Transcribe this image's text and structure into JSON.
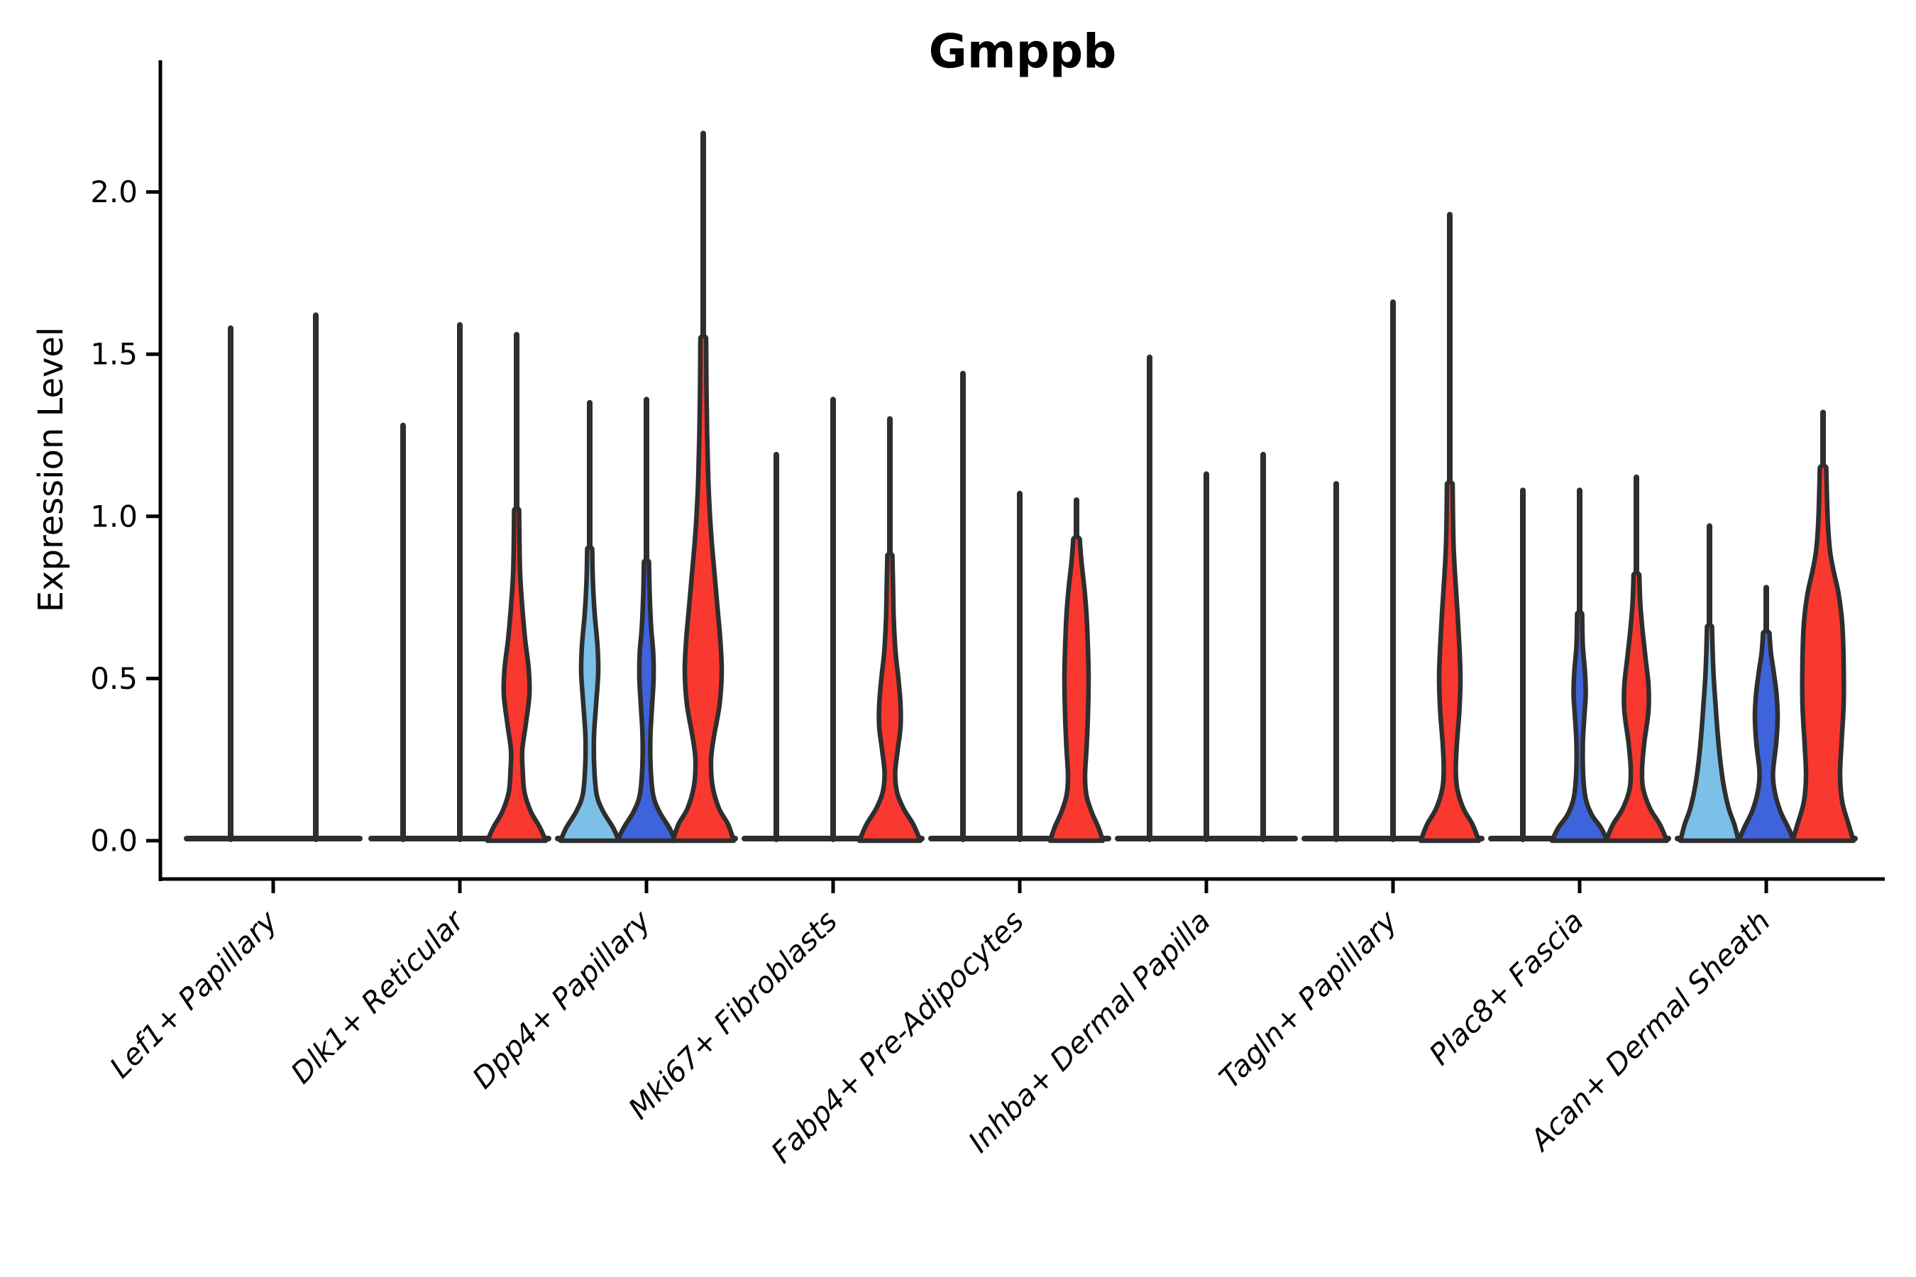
{
  "chart_data": {
    "type": "violin",
    "title": "Gmppb",
    "ylabel": "Expression Level",
    "xlabel": "",
    "yticks": [
      "0.0",
      "0.5",
      "1.0",
      "1.5",
      "2.0"
    ],
    "ytick_values": [
      0.0,
      0.5,
      1.0,
      1.5,
      2.0
    ],
    "ylim": [
      -0.12,
      2.41
    ],
    "grid": "off",
    "legend": "none",
    "palette": {
      "lightblue": "#7CC0E8",
      "blue": "#3E63DA",
      "red": "#F9382F",
      "outline": "#2E2E2E",
      "axis": "#000000"
    },
    "categories": [
      "Lef1+ Papillary",
      "Dlk1+ Reticular",
      "Dpp4+ Papillary",
      "Mki67+ Fibroblasts",
      "Fabp4+ Pre-Adipocytes",
      "Inhba+ Dermal Papilla",
      "Tagln+ Papillary",
      "Plac8+ Fascia",
      "Acan+ Dermal Sheath"
    ],
    "groups": [
      {
        "category": "Lef1+ Papillary",
        "base_half_extend": 62,
        "violins": [
          {
            "color": null,
            "offset": -60,
            "max": 1.58,
            "profile": null
          },
          {
            "color": null,
            "offset": 60,
            "max": 1.62,
            "profile": null
          }
        ]
      },
      {
        "category": "Dlk1+ Reticular",
        "base_half_extend": 45,
        "violins": [
          {
            "color": null,
            "offset": -80,
            "max": 1.28,
            "profile": null
          },
          {
            "color": null,
            "offset": 0,
            "max": 1.59,
            "profile": null
          },
          {
            "color": "red",
            "offset": 80,
            "max": 1.56,
            "profile": [
              [
                0,
                41
              ],
              [
                0.04,
                33
              ],
              [
                0.09,
                20
              ],
              [
                0.15,
                11
              ],
              [
                0.22,
                8.5
              ],
              [
                0.28,
                8
              ],
              [
                0.36,
                13
              ],
              [
                0.45,
                18
              ],
              [
                0.53,
                17
              ],
              [
                0.62,
                12
              ],
              [
                0.72,
                8
              ],
              [
                0.82,
                5
              ],
              [
                0.92,
                4
              ],
              [
                1.02,
                3.5
              ]
            ]
          }
        ]
      },
      {
        "category": "Dpp4+ Papillary",
        "base_half_extend": 45,
        "violins": [
          {
            "color": "lightblue",
            "offset": -80,
            "max": 1.35,
            "profile": [
              [
                0,
                41
              ],
              [
                0.04,
                33
              ],
              [
                0.09,
                19
              ],
              [
                0.14,
                10
              ],
              [
                0.22,
                6.5
              ],
              [
                0.32,
                6
              ],
              [
                0.42,
                9
              ],
              [
                0.52,
                12
              ],
              [
                0.6,
                11
              ],
              [
                0.7,
                7
              ],
              [
                0.8,
                4.5
              ],
              [
                0.9,
                3.5
              ]
            ]
          },
          {
            "color": "blue",
            "offset": 0,
            "max": 1.36,
            "profile": [
              [
                0,
                41
              ],
              [
                0.04,
                32
              ],
              [
                0.09,
                18
              ],
              [
                0.14,
                9.5
              ],
              [
                0.22,
                6
              ],
              [
                0.32,
                5.5
              ],
              [
                0.42,
                8
              ],
              [
                0.5,
                10
              ],
              [
                0.58,
                9.5
              ],
              [
                0.66,
                6.5
              ],
              [
                0.76,
                4.5
              ],
              [
                0.86,
                3.5
              ]
            ]
          },
          {
            "color": "red",
            "offset": 80,
            "max": 2.18,
            "profile": [
              [
                0,
                43
              ],
              [
                0.05,
                35
              ],
              [
                0.1,
                22
              ],
              [
                0.17,
                13
              ],
              [
                0.25,
                11
              ],
              [
                0.32,
                15
              ],
              [
                0.42,
                23
              ],
              [
                0.52,
                26
              ],
              [
                0.62,
                24
              ],
              [
                0.72,
                20
              ],
              [
                0.82,
                16
              ],
              [
                0.92,
                12
              ],
              [
                1.02,
                9
              ],
              [
                1.12,
                7
              ],
              [
                1.25,
                5.5
              ],
              [
                1.4,
                4.5
              ],
              [
                1.55,
                4
              ]
            ]
          }
        ]
      },
      {
        "category": "Mki67+ Fibroblasts",
        "base_half_extend": 45,
        "violins": [
          {
            "color": null,
            "offset": -80,
            "max": 1.19,
            "profile": null
          },
          {
            "color": null,
            "offset": 0,
            "max": 1.36,
            "profile": null
          },
          {
            "color": "red",
            "offset": 80,
            "max": 1.3,
            "profile": [
              [
                0,
                43
              ],
              [
                0.05,
                33
              ],
              [
                0.1,
                19
              ],
              [
                0.15,
                10
              ],
              [
                0.21,
                7.5
              ],
              [
                0.28,
                11
              ],
              [
                0.35,
                15
              ],
              [
                0.42,
                15
              ],
              [
                0.5,
                12
              ],
              [
                0.58,
                8
              ],
              [
                0.68,
                5.5
              ],
              [
                0.78,
                4.5
              ],
              [
                0.88,
                3.5
              ]
            ]
          }
        ]
      },
      {
        "category": "Fabp4+ Pre-Adipocytes",
        "base_half_extend": 45,
        "violins": [
          {
            "color": null,
            "offset": -80,
            "max": 1.44,
            "profile": null
          },
          {
            "color": null,
            "offset": 0,
            "max": 1.07,
            "profile": null
          },
          {
            "color": "red",
            "offset": 80,
            "max": 1.05,
            "profile": [
              [
                0,
                37
              ],
              [
                0.04,
                31
              ],
              [
                0.09,
                21
              ],
              [
                0.14,
                14
              ],
              [
                0.2,
                12
              ],
              [
                0.28,
                14
              ],
              [
                0.38,
                16
              ],
              [
                0.5,
                17
              ],
              [
                0.6,
                16
              ],
              [
                0.7,
                14
              ],
              [
                0.78,
                11
              ],
              [
                0.86,
                7
              ],
              [
                0.93,
                4.5
              ]
            ]
          }
        ]
      },
      {
        "category": "Inhba+ Dermal Papilla",
        "base_half_extend": 45,
        "violins": [
          {
            "color": null,
            "offset": -80,
            "max": 1.49,
            "profile": null
          },
          {
            "color": null,
            "offset": 0,
            "max": 1.13,
            "profile": null
          },
          {
            "color": null,
            "offset": 80,
            "max": 1.19,
            "profile": null
          }
        ]
      },
      {
        "category": "Tagln+ Papillary",
        "base_half_extend": 45,
        "violins": [
          {
            "color": null,
            "offset": -80,
            "max": 1.1,
            "profile": null
          },
          {
            "color": null,
            "offset": 0,
            "max": 1.66,
            "profile": null
          },
          {
            "color": "red",
            "offset": 80,
            "max": 1.93,
            "profile": [
              [
                0,
                41
              ],
              [
                0.05,
                32
              ],
              [
                0.1,
                19
              ],
              [
                0.16,
                10.5
              ],
              [
                0.22,
                8.5
              ],
              [
                0.3,
                10
              ],
              [
                0.4,
                13.5
              ],
              [
                0.5,
                15
              ],
              [
                0.6,
                13.5
              ],
              [
                0.7,
                11
              ],
              [
                0.8,
                8
              ],
              [
                0.9,
                5.5
              ],
              [
                1.0,
                4.5
              ],
              [
                1.1,
                4
              ]
            ]
          }
        ]
      },
      {
        "category": "Plac8+ Fascia",
        "base_half_extend": 45,
        "violins": [
          {
            "color": null,
            "offset": -80,
            "max": 1.08,
            "profile": null
          },
          {
            "color": "blue",
            "offset": 0,
            "max": 1.08,
            "profile": [
              [
                0,
                39
              ],
              [
                0.04,
                30
              ],
              [
                0.08,
                17
              ],
              [
                0.13,
                8.5
              ],
              [
                0.2,
                5
              ],
              [
                0.3,
                4.5
              ],
              [
                0.38,
                6.5
              ],
              [
                0.45,
                8.5
              ],
              [
                0.52,
                7.5
              ],
              [
                0.6,
                4.5
              ],
              [
                0.7,
                3.5
              ]
            ]
          },
          {
            "color": "red",
            "offset": 80,
            "max": 1.12,
            "profile": [
              [
                0,
                43
              ],
              [
                0.05,
                33
              ],
              [
                0.1,
                19
              ],
              [
                0.16,
                9.5
              ],
              [
                0.22,
                8
              ],
              [
                0.3,
                11
              ],
              [
                0.4,
                17
              ],
              [
                0.48,
                17
              ],
              [
                0.56,
                13
              ],
              [
                0.64,
                9
              ],
              [
                0.73,
                5.5
              ],
              [
                0.82,
                4
              ]
            ]
          }
        ]
      },
      {
        "category": "Acan+ Dermal Sheath",
        "base_half_extend": 45,
        "violins": [
          {
            "color": "lightblue",
            "offset": -80,
            "max": 0.97,
            "profile": [
              [
                0,
                41
              ],
              [
                0.05,
                35
              ],
              [
                0.1,
                27
              ],
              [
                0.17,
                20
              ],
              [
                0.25,
                15
              ],
              [
                0.33,
                11.5
              ],
              [
                0.42,
                8.5
              ],
              [
                0.5,
                6
              ],
              [
                0.58,
                4.5
              ],
              [
                0.66,
                3.5
              ]
            ]
          },
          {
            "color": "blue",
            "offset": 0,
            "max": 0.78,
            "profile": [
              [
                0,
                39
              ],
              [
                0.04,
                31
              ],
              [
                0.09,
                20
              ],
              [
                0.15,
                12
              ],
              [
                0.21,
                9.5
              ],
              [
                0.3,
                14
              ],
              [
                0.38,
                16
              ],
              [
                0.45,
                14.5
              ],
              [
                0.52,
                10.5
              ],
              [
                0.58,
                6.5
              ],
              [
                0.64,
                4.5
              ]
            ]
          },
          {
            "color": "red",
            "offset": 80,
            "max": 1.32,
            "profile": [
              [
                0,
                43
              ],
              [
                0.05,
                36
              ],
              [
                0.12,
                27
              ],
              [
                0.2,
                24
              ],
              [
                0.3,
                26
              ],
              [
                0.42,
                29
              ],
              [
                0.55,
                29
              ],
              [
                0.67,
                27
              ],
              [
                0.76,
                22
              ],
              [
                0.83,
                15
              ],
              [
                0.89,
                10
              ],
              [
                0.97,
                7
              ],
              [
                1.06,
                5.5
              ],
              [
                1.15,
                4.5
              ]
            ]
          }
        ]
      }
    ]
  }
}
